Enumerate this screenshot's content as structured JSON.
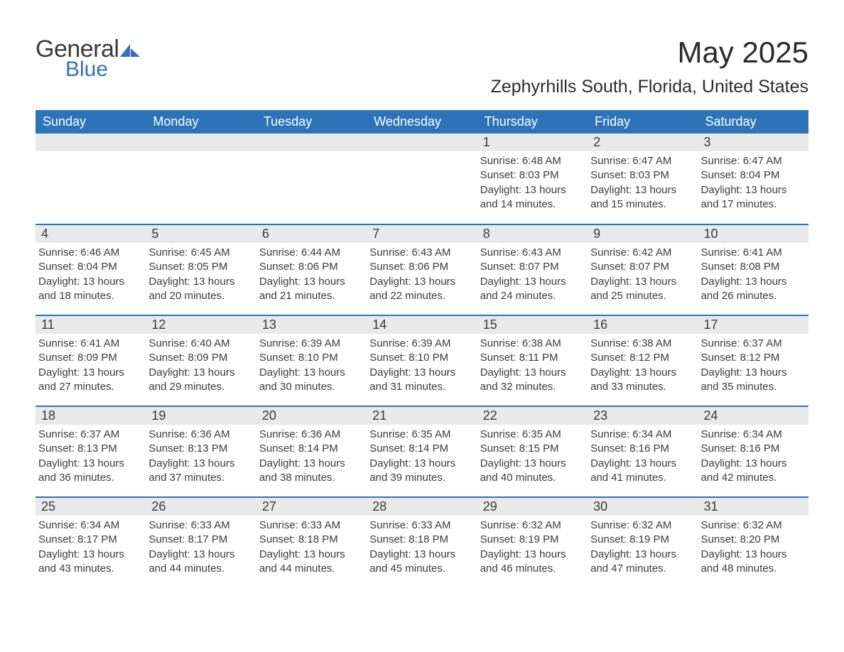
{
  "logo": {
    "text1": "General",
    "text2": "Blue",
    "icon_color": "#2d73b8"
  },
  "title": "May 2025",
  "location": "Zephyrhills South, Florida, United States",
  "colors": {
    "header_bg": "#2d73b8",
    "header_text": "#ffffff",
    "daynum_bg": "#e9e9e9",
    "border": "#2d73b8",
    "text": "#3b3b3b",
    "background": "#ffffff"
  },
  "weekdays": [
    "Sunday",
    "Monday",
    "Tuesday",
    "Wednesday",
    "Thursday",
    "Friday",
    "Saturday"
  ],
  "calendar": {
    "blank_leading": 4,
    "days": [
      {
        "n": 1,
        "sunrise": "6:48 AM",
        "sunset": "8:03 PM",
        "daylight": "13 hours and 14 minutes."
      },
      {
        "n": 2,
        "sunrise": "6:47 AM",
        "sunset": "8:03 PM",
        "daylight": "13 hours and 15 minutes."
      },
      {
        "n": 3,
        "sunrise": "6:47 AM",
        "sunset": "8:04 PM",
        "daylight": "13 hours and 17 minutes."
      },
      {
        "n": 4,
        "sunrise": "6:46 AM",
        "sunset": "8:04 PM",
        "daylight": "13 hours and 18 minutes."
      },
      {
        "n": 5,
        "sunrise": "6:45 AM",
        "sunset": "8:05 PM",
        "daylight": "13 hours and 20 minutes."
      },
      {
        "n": 6,
        "sunrise": "6:44 AM",
        "sunset": "8:06 PM",
        "daylight": "13 hours and 21 minutes."
      },
      {
        "n": 7,
        "sunrise": "6:43 AM",
        "sunset": "8:06 PM",
        "daylight": "13 hours and 22 minutes."
      },
      {
        "n": 8,
        "sunrise": "6:43 AM",
        "sunset": "8:07 PM",
        "daylight": "13 hours and 24 minutes."
      },
      {
        "n": 9,
        "sunrise": "6:42 AM",
        "sunset": "8:07 PM",
        "daylight": "13 hours and 25 minutes."
      },
      {
        "n": 10,
        "sunrise": "6:41 AM",
        "sunset": "8:08 PM",
        "daylight": "13 hours and 26 minutes."
      },
      {
        "n": 11,
        "sunrise": "6:41 AM",
        "sunset": "8:09 PM",
        "daylight": "13 hours and 27 minutes."
      },
      {
        "n": 12,
        "sunrise": "6:40 AM",
        "sunset": "8:09 PM",
        "daylight": "13 hours and 29 minutes."
      },
      {
        "n": 13,
        "sunrise": "6:39 AM",
        "sunset": "8:10 PM",
        "daylight": "13 hours and 30 minutes."
      },
      {
        "n": 14,
        "sunrise": "6:39 AM",
        "sunset": "8:10 PM",
        "daylight": "13 hours and 31 minutes."
      },
      {
        "n": 15,
        "sunrise": "6:38 AM",
        "sunset": "8:11 PM",
        "daylight": "13 hours and 32 minutes."
      },
      {
        "n": 16,
        "sunrise": "6:38 AM",
        "sunset": "8:12 PM",
        "daylight": "13 hours and 33 minutes."
      },
      {
        "n": 17,
        "sunrise": "6:37 AM",
        "sunset": "8:12 PM",
        "daylight": "13 hours and 35 minutes."
      },
      {
        "n": 18,
        "sunrise": "6:37 AM",
        "sunset": "8:13 PM",
        "daylight": "13 hours and 36 minutes."
      },
      {
        "n": 19,
        "sunrise": "6:36 AM",
        "sunset": "8:13 PM",
        "daylight": "13 hours and 37 minutes."
      },
      {
        "n": 20,
        "sunrise": "6:36 AM",
        "sunset": "8:14 PM",
        "daylight": "13 hours and 38 minutes."
      },
      {
        "n": 21,
        "sunrise": "6:35 AM",
        "sunset": "8:14 PM",
        "daylight": "13 hours and 39 minutes."
      },
      {
        "n": 22,
        "sunrise": "6:35 AM",
        "sunset": "8:15 PM",
        "daylight": "13 hours and 40 minutes."
      },
      {
        "n": 23,
        "sunrise": "6:34 AM",
        "sunset": "8:16 PM",
        "daylight": "13 hours and 41 minutes."
      },
      {
        "n": 24,
        "sunrise": "6:34 AM",
        "sunset": "8:16 PM",
        "daylight": "13 hours and 42 minutes."
      },
      {
        "n": 25,
        "sunrise": "6:34 AM",
        "sunset": "8:17 PM",
        "daylight": "13 hours and 43 minutes."
      },
      {
        "n": 26,
        "sunrise": "6:33 AM",
        "sunset": "8:17 PM",
        "daylight": "13 hours and 44 minutes."
      },
      {
        "n": 27,
        "sunrise": "6:33 AM",
        "sunset": "8:18 PM",
        "daylight": "13 hours and 44 minutes."
      },
      {
        "n": 28,
        "sunrise": "6:33 AM",
        "sunset": "8:18 PM",
        "daylight": "13 hours and 45 minutes."
      },
      {
        "n": 29,
        "sunrise": "6:32 AM",
        "sunset": "8:19 PM",
        "daylight": "13 hours and 46 minutes."
      },
      {
        "n": 30,
        "sunrise": "6:32 AM",
        "sunset": "8:19 PM",
        "daylight": "13 hours and 47 minutes."
      },
      {
        "n": 31,
        "sunrise": "6:32 AM",
        "sunset": "8:20 PM",
        "daylight": "13 hours and 48 minutes."
      }
    ]
  },
  "labels": {
    "sunrise": "Sunrise:",
    "sunset": "Sunset:",
    "daylight": "Daylight:"
  }
}
